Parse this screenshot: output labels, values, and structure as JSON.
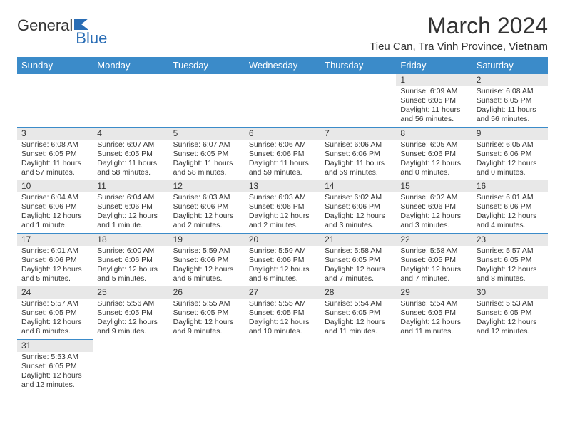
{
  "brand": {
    "text1": "General",
    "text2": "Blue"
  },
  "title": "March 2024",
  "location": "Tieu Can, Tra Vinh Province, Vietnam",
  "colors": {
    "header_bg": "#3b8bc9",
    "header_text": "#ffffff",
    "daynum_bg": "#e8e8e8",
    "row_border": "#3b8bc9",
    "text": "#333333",
    "brand_blue": "#2a6db5"
  },
  "weekdays": [
    "Sunday",
    "Monday",
    "Tuesday",
    "Wednesday",
    "Thursday",
    "Friday",
    "Saturday"
  ],
  "layout": {
    "first_weekday_index": 5,
    "days_in_month": 31
  },
  "days": {
    "1": {
      "sunrise": "6:09 AM",
      "sunset": "6:05 PM",
      "daylight": "11 hours and 56 minutes."
    },
    "2": {
      "sunrise": "6:08 AM",
      "sunset": "6:05 PM",
      "daylight": "11 hours and 56 minutes."
    },
    "3": {
      "sunrise": "6:08 AM",
      "sunset": "6:05 PM",
      "daylight": "11 hours and 57 minutes."
    },
    "4": {
      "sunrise": "6:07 AM",
      "sunset": "6:05 PM",
      "daylight": "11 hours and 58 minutes."
    },
    "5": {
      "sunrise": "6:07 AM",
      "sunset": "6:05 PM",
      "daylight": "11 hours and 58 minutes."
    },
    "6": {
      "sunrise": "6:06 AM",
      "sunset": "6:06 PM",
      "daylight": "11 hours and 59 minutes."
    },
    "7": {
      "sunrise": "6:06 AM",
      "sunset": "6:06 PM",
      "daylight": "11 hours and 59 minutes."
    },
    "8": {
      "sunrise": "6:05 AM",
      "sunset": "6:06 PM",
      "daylight": "12 hours and 0 minutes."
    },
    "9": {
      "sunrise": "6:05 AM",
      "sunset": "6:06 PM",
      "daylight": "12 hours and 0 minutes."
    },
    "10": {
      "sunrise": "6:04 AM",
      "sunset": "6:06 PM",
      "daylight": "12 hours and 1 minute."
    },
    "11": {
      "sunrise": "6:04 AM",
      "sunset": "6:06 PM",
      "daylight": "12 hours and 1 minute."
    },
    "12": {
      "sunrise": "6:03 AM",
      "sunset": "6:06 PM",
      "daylight": "12 hours and 2 minutes."
    },
    "13": {
      "sunrise": "6:03 AM",
      "sunset": "6:06 PM",
      "daylight": "12 hours and 2 minutes."
    },
    "14": {
      "sunrise": "6:02 AM",
      "sunset": "6:06 PM",
      "daylight": "12 hours and 3 minutes."
    },
    "15": {
      "sunrise": "6:02 AM",
      "sunset": "6:06 PM",
      "daylight": "12 hours and 3 minutes."
    },
    "16": {
      "sunrise": "6:01 AM",
      "sunset": "6:06 PM",
      "daylight": "12 hours and 4 minutes."
    },
    "17": {
      "sunrise": "6:01 AM",
      "sunset": "6:06 PM",
      "daylight": "12 hours and 5 minutes."
    },
    "18": {
      "sunrise": "6:00 AM",
      "sunset": "6:06 PM",
      "daylight": "12 hours and 5 minutes."
    },
    "19": {
      "sunrise": "5:59 AM",
      "sunset": "6:06 PM",
      "daylight": "12 hours and 6 minutes."
    },
    "20": {
      "sunrise": "5:59 AM",
      "sunset": "6:06 PM",
      "daylight": "12 hours and 6 minutes."
    },
    "21": {
      "sunrise": "5:58 AM",
      "sunset": "6:05 PM",
      "daylight": "12 hours and 7 minutes."
    },
    "22": {
      "sunrise": "5:58 AM",
      "sunset": "6:05 PM",
      "daylight": "12 hours and 7 minutes."
    },
    "23": {
      "sunrise": "5:57 AM",
      "sunset": "6:05 PM",
      "daylight": "12 hours and 8 minutes."
    },
    "24": {
      "sunrise": "5:57 AM",
      "sunset": "6:05 PM",
      "daylight": "12 hours and 8 minutes."
    },
    "25": {
      "sunrise": "5:56 AM",
      "sunset": "6:05 PM",
      "daylight": "12 hours and 9 minutes."
    },
    "26": {
      "sunrise": "5:55 AM",
      "sunset": "6:05 PM",
      "daylight": "12 hours and 9 minutes."
    },
    "27": {
      "sunrise": "5:55 AM",
      "sunset": "6:05 PM",
      "daylight": "12 hours and 10 minutes."
    },
    "28": {
      "sunrise": "5:54 AM",
      "sunset": "6:05 PM",
      "daylight": "12 hours and 11 minutes."
    },
    "29": {
      "sunrise": "5:54 AM",
      "sunset": "6:05 PM",
      "daylight": "12 hours and 11 minutes."
    },
    "30": {
      "sunrise": "5:53 AM",
      "sunset": "6:05 PM",
      "daylight": "12 hours and 12 minutes."
    },
    "31": {
      "sunrise": "5:53 AM",
      "sunset": "6:05 PM",
      "daylight": "12 hours and 12 minutes."
    }
  },
  "labels": {
    "sunrise": "Sunrise:",
    "sunset": "Sunset:",
    "daylight": "Daylight:"
  }
}
